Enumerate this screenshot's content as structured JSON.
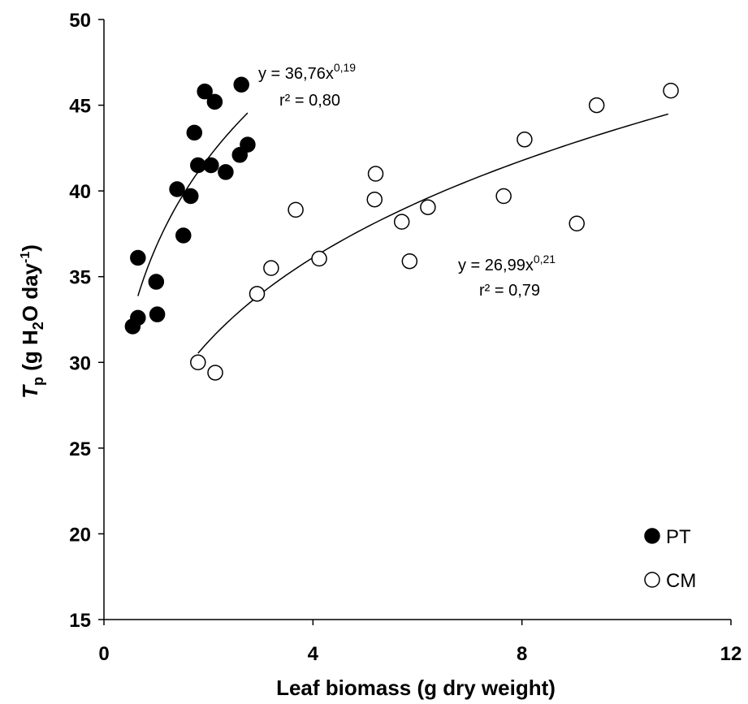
{
  "chart_data": {
    "type": "scatter",
    "xlabel": "Leaf biomass (g dry weight)",
    "ylabel_parts": {
      "symbol": "T",
      "subscript": "p",
      "open": " (g H",
      "water_sub": "2",
      "unit_main": "O day",
      "unit_sup": "-1",
      "close": ")"
    },
    "xlim": [
      0,
      12
    ],
    "ylim": [
      15,
      50
    ],
    "xticks": [
      "0",
      "4",
      "8",
      "12"
    ],
    "yticks": [
      "15",
      "20",
      "25",
      "30",
      "35",
      "40",
      "45",
      "50"
    ],
    "xtick_values": [
      0,
      4,
      8,
      12
    ],
    "ytick_values": [
      15,
      20,
      25,
      30,
      35,
      40,
      45,
      50
    ],
    "series": [
      {
        "name": "PT",
        "marker": "filled",
        "points": [
          [
            0.55,
            32.1
          ],
          [
            0.65,
            32.6
          ],
          [
            0.65,
            36.1
          ],
          [
            1.0,
            34.7
          ],
          [
            1.02,
            32.8
          ],
          [
            1.4,
            40.1
          ],
          [
            1.52,
            37.4
          ],
          [
            1.66,
            39.7
          ],
          [
            1.73,
            43.4
          ],
          [
            1.8,
            41.5
          ],
          [
            1.93,
            45.8
          ],
          [
            2.05,
            41.5
          ],
          [
            2.12,
            45.2
          ],
          [
            2.33,
            41.1
          ],
          [
            2.6,
            42.1
          ],
          [
            2.63,
            46.2
          ],
          [
            2.75,
            42.7
          ]
        ],
        "fit": {
          "a": 36.76,
          "b": 0.19,
          "x_range": [
            0.65,
            2.75
          ]
        },
        "equation_main": "y = 36,76x",
        "equation_exp": "0,19",
        "r2": "r² = 0,80"
      },
      {
        "name": "CM",
        "marker": "open",
        "points": [
          [
            1.8,
            30.0
          ],
          [
            2.13,
            29.4
          ],
          [
            2.93,
            34.0
          ],
          [
            3.2,
            35.5
          ],
          [
            3.67,
            38.9
          ],
          [
            4.12,
            36.05
          ],
          [
            5.18,
            39.5
          ],
          [
            5.2,
            41.0
          ],
          [
            5.7,
            38.2
          ],
          [
            5.85,
            35.9
          ],
          [
            6.2,
            39.05
          ],
          [
            7.65,
            39.7
          ],
          [
            8.05,
            43.0
          ],
          [
            9.05,
            38.1
          ],
          [
            9.43,
            45.0
          ],
          [
            10.85,
            45.85
          ]
        ],
        "fit": {
          "a": 26.99,
          "b": 0.21,
          "x_range": [
            1.8,
            10.8
          ]
        },
        "equation_main": "y = 26,99x",
        "equation_exp": "0,21",
        "r2": "r² = 0,79"
      }
    ],
    "legend": {
      "placement": "bottom-right",
      "entries": [
        "PT",
        "CM"
      ]
    },
    "grid": false
  }
}
